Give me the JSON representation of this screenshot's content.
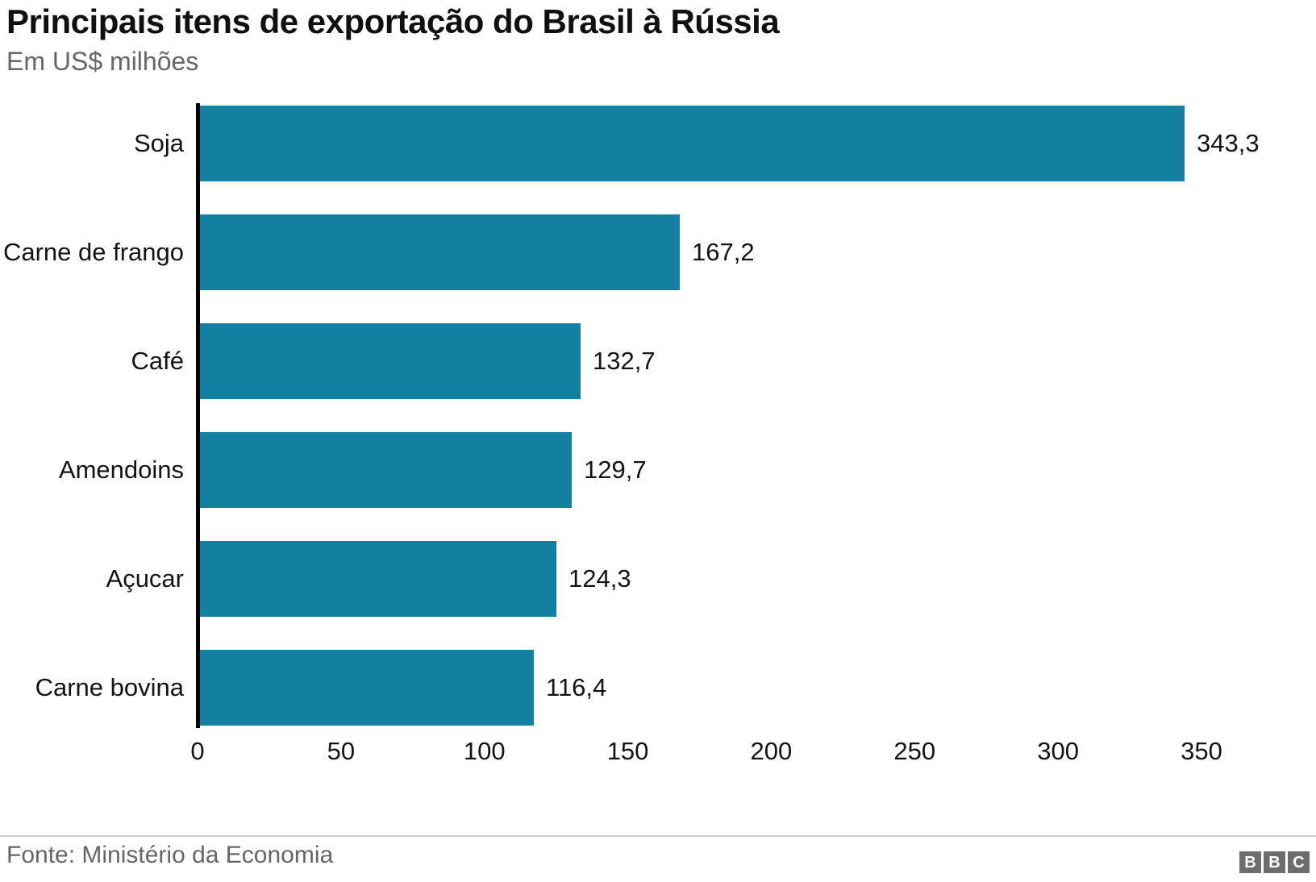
{
  "header": {
    "title": "Principais itens de exportação do Brasil à Rússia",
    "subtitle": "Em US$ milhões"
  },
  "chart_data": {
    "type": "bar",
    "orientation": "horizontal",
    "title": "Principais itens de exportação do Brasil à Rússia",
    "subtitle": "Em US$ milhões",
    "categories": [
      "Soja",
      "Carne de frango",
      "Café",
      "Amendoins",
      "Açucar",
      "Carne bovina"
    ],
    "values": [
      343.3,
      167.2,
      132.7,
      129.7,
      124.3,
      116.4
    ],
    "value_labels": [
      "343,3",
      "167,2",
      "132,7",
      "129,7",
      "124,3",
      "116,4"
    ],
    "xlim": [
      0,
      350
    ],
    "xticks": [
      0,
      50,
      100,
      150,
      200,
      250,
      300,
      350
    ],
    "xtick_labels": [
      "0",
      "50",
      "100",
      "150",
      "200",
      "250",
      "300",
      "350"
    ],
    "grid": false,
    "legend": false,
    "bar_color": "#1380A1",
    "axis_line_color": "#000000"
  },
  "footer": {
    "source": "Fonte: Ministério da Economia",
    "logo_letters": [
      "B",
      "B",
      "C"
    ]
  }
}
